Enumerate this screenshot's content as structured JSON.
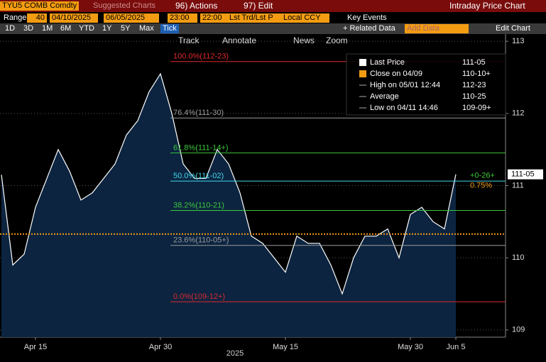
{
  "toolbar": {
    "ticker": "TYU5 COMB Comdty",
    "suggested": "Suggested Charts",
    "actions": "96) Actions",
    "edit": "97) Edit",
    "view": "Intraday Price Chart",
    "range_label": "Range",
    "range_n": "40",
    "start": "04/10/2025",
    "end": "06/05/2025",
    "t_start": "23:00",
    "t_end": "22:00",
    "field": "Lst Trd/Lst P",
    "ccy": "Local CCY",
    "key_events": "Key Events",
    "periods": [
      "1D",
      "3D",
      "1M",
      "6M",
      "YTD",
      "1Y",
      "5Y",
      "Max",
      "Tick"
    ],
    "related": "+ Related Data",
    "add_data": "Add Data",
    "edit_chart": "Edit Chart",
    "tools": [
      "Track",
      "Annotate",
      "News",
      "Zoom"
    ]
  },
  "chart_data": {
    "type": "area",
    "xlabel": "2025",
    "x": [
      "2025-04-10",
      "2025-04-11",
      "2025-04-14",
      "2025-04-15",
      "2025-04-16",
      "2025-04-17",
      "2025-04-18",
      "2025-04-21",
      "2025-04-22",
      "2025-04-23",
      "2025-04-24",
      "2025-04-25",
      "2025-04-28",
      "2025-04-29",
      "2025-04-30",
      "2025-05-01",
      "2025-05-02",
      "2025-05-05",
      "2025-05-06",
      "2025-05-07",
      "2025-05-08",
      "2025-05-09",
      "2025-05-12",
      "2025-05-13",
      "2025-05-14",
      "2025-05-15",
      "2025-05-16",
      "2025-05-19",
      "2025-05-20",
      "2025-05-21",
      "2025-05-22",
      "2025-05-23",
      "2025-05-26",
      "2025-05-27",
      "2025-05-28",
      "2025-05-29",
      "2025-05-30",
      "2025-06-02",
      "2025-06-03",
      "2025-06-04",
      "2025-06-05"
    ],
    "series": [
      {
        "name": "Last Price",
        "color": "#ffffff",
        "fill": "#0c2440",
        "values": [
          111.15,
          109.9,
          110.05,
          110.7,
          111.1,
          111.5,
          111.2,
          110.8,
          110.9,
          111.1,
          111.3,
          111.7,
          111.9,
          112.3,
          112.55,
          112.0,
          111.3,
          111.1,
          111.1,
          111.5,
          111.3,
          110.9,
          110.3,
          110.2,
          110.0,
          109.8,
          110.3,
          110.2,
          110.2,
          109.9,
          109.5,
          110.0,
          110.3,
          110.3,
          110.4,
          110.0,
          110.6,
          110.7,
          110.5,
          110.4,
          111.15625
        ]
      }
    ],
    "ylim": [
      108.9,
      113.1
    ],
    "yticks": [
      109,
      110,
      111,
      112,
      113
    ],
    "grid": true,
    "xticks": [
      {
        "value": "2025-04-15",
        "label": "Apr 15"
      },
      {
        "value": "2025-04-30",
        "label": "Apr 30"
      },
      {
        "value": "2025-05-15",
        "label": "May 15"
      },
      {
        "value": "2025-05-30",
        "label": "May 30"
      },
      {
        "value": "2025-06-05",
        "label": "Jun 5"
      }
    ],
    "fib_levels": [
      {
        "label": "100.0%(112-23)",
        "value": 112.71875,
        "color": "#e0282d"
      },
      {
        "label": "76.4%(111-30)",
        "value": 111.9375,
        "color": "#9a9a9a"
      },
      {
        "label": "61.8%(111-14+)",
        "value": 111.453125,
        "color": "#3cc83c"
      },
      {
        "label": "50.0%(111-02)",
        "value": 111.0625,
        "color": "#40d8e8"
      },
      {
        "label": "38.2%(110-21)",
        "value": 110.65625,
        "color": "#3cc83c"
      },
      {
        "label": "23.6%(110-05+)",
        "value": 110.171875,
        "color": "#9a9a9a"
      },
      {
        "label": "0.0%(109-12+)",
        "value": 109.390625,
        "color": "#e0282d"
      }
    ],
    "legend": [
      {
        "name": "Last Price",
        "label": "111-05"
      },
      {
        "name": "Close on 04/09",
        "label": "110-10+",
        "value": 110.328125,
        "color": "#f39c12"
      },
      {
        "name": "High on 05/01 12:44",
        "label": "112-23"
      },
      {
        "name": "Average",
        "label": "110-25"
      },
      {
        "name": "Low on 04/11 14:46",
        "label": "109-09+"
      }
    ],
    "last_label": "111-05",
    "change": "+0-26+",
    "change_pct": "0.75%"
  }
}
